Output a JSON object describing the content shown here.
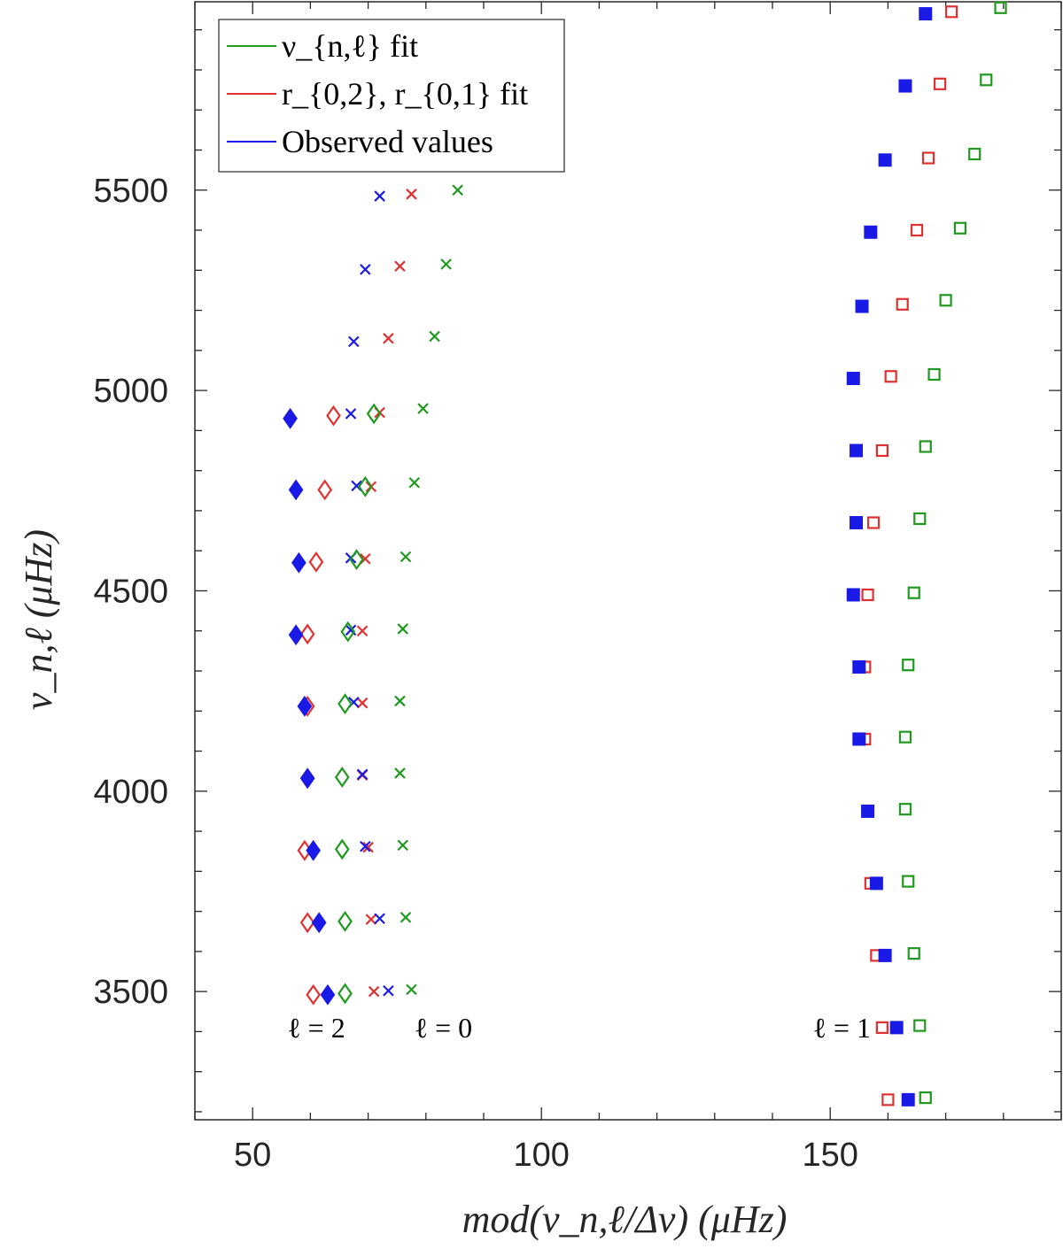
{
  "chart_data": {
    "type": "scatter",
    "title": "",
    "xlabel": "mod(ν_n,ℓ/Δν) (μHz)",
    "ylabel": "ν_n,ℓ (μHz)",
    "xlim": [
      40,
      190
    ],
    "ylim": [
      3180,
      5970
    ],
    "xticks": [
      50,
      100,
      150
    ],
    "yticks": [
      3500,
      4000,
      4500,
      5000,
      5500
    ],
    "legend": {
      "position": "top-left",
      "entries": [
        {
          "label": "ν_{n,ℓ} fit",
          "color": "#1f9a1f"
        },
        {
          "label": "r_{0,2}, r_{0,1} fit",
          "color": "#e03030"
        },
        {
          "label": "Observed values",
          "color": "#1a1ae6"
        }
      ]
    },
    "annotations": [
      {
        "text": "ℓ = 2",
        "x": 56,
        "y": 3385
      },
      {
        "text": "ℓ = 0",
        "x": 78,
        "y": 3385
      },
      {
        "text": "ℓ = 1",
        "x": 147,
        "y": 3385
      }
    ],
    "colors": {
      "green": "#1f9a1f",
      "red": "#e03030",
      "blue": "#1a1ae6"
    },
    "series": [
      {
        "name": "ℓ=0 ν fit",
        "marker": "x",
        "color": "#1f9a1f",
        "points": [
          [
            77.5,
            3505
          ],
          [
            76.5,
            3685
          ],
          [
            76.0,
            3865
          ],
          [
            75.5,
            4045
          ],
          [
            75.5,
            4225
          ],
          [
            76.0,
            4405
          ],
          [
            76.5,
            4585
          ],
          [
            78.0,
            4770
          ],
          [
            79.5,
            4955
          ],
          [
            81.5,
            5135
          ],
          [
            83.5,
            5315
          ],
          [
            85.5,
            5500
          ]
        ]
      },
      {
        "name": "ℓ=0 ratio fit",
        "marker": "x",
        "color": "#e03030",
        "points": [
          [
            71.0,
            3500
          ],
          [
            70.5,
            3680
          ],
          [
            70.0,
            3860
          ],
          [
            69.0,
            4040
          ],
          [
            69.0,
            4220
          ],
          [
            69.0,
            4400
          ],
          [
            69.5,
            4580
          ],
          [
            70.5,
            4760
          ],
          [
            72.0,
            4945
          ],
          [
            73.5,
            5130
          ],
          [
            75.5,
            5310
          ],
          [
            77.5,
            5490
          ]
        ]
      },
      {
        "name": "ℓ=0 observed",
        "marker": "x",
        "color": "#1a1ae6",
        "points": [
          [
            73.5,
            3502
          ],
          [
            72.0,
            3682
          ],
          [
            69.5,
            3862
          ],
          [
            69.0,
            4042
          ],
          [
            67.5,
            4222
          ],
          [
            67.0,
            4402
          ],
          [
            67.0,
            4582
          ],
          [
            68.0,
            4762
          ],
          [
            67.0,
            4942
          ],
          [
            67.5,
            5122
          ],
          [
            69.5,
            5302
          ],
          [
            72.0,
            5485
          ]
        ]
      },
      {
        "name": "ℓ=2 ν fit",
        "marker": "diamond-open",
        "color": "#1f9a1f",
        "points": [
          [
            66.0,
            3495
          ],
          [
            66.0,
            3675
          ],
          [
            65.5,
            3855
          ],
          [
            65.5,
            4035
          ],
          [
            66.0,
            4218
          ],
          [
            66.5,
            4398
          ],
          [
            68.0,
            4578
          ],
          [
            69.5,
            4760
          ],
          [
            71.0,
            4942
          ]
        ]
      },
      {
        "name": "ℓ=2 ratio fit",
        "marker": "diamond-open",
        "color": "#e03030",
        "points": [
          [
            60.5,
            3492
          ],
          [
            59.5,
            3672
          ],
          [
            59.0,
            3852
          ],
          [
            59.5,
            4032
          ],
          [
            59.5,
            4212
          ],
          [
            59.5,
            4392
          ],
          [
            61.0,
            4572
          ],
          [
            62.5,
            4752
          ],
          [
            64.0,
            4937
          ]
        ]
      },
      {
        "name": "ℓ=2 observed",
        "marker": "diamond-filled",
        "color": "#1a1ae6",
        "points": [
          [
            63.0,
            3492
          ],
          [
            61.5,
            3672
          ],
          [
            60.5,
            3852
          ],
          [
            59.5,
            4032
          ],
          [
            59.0,
            4212
          ],
          [
            57.5,
            4390
          ],
          [
            58.0,
            4570
          ],
          [
            57.5,
            4752
          ],
          [
            56.5,
            4930
          ]
        ]
      },
      {
        "name": "ℓ=1 ν fit",
        "marker": "square-open",
        "color": "#1f9a1f",
        "points": [
          [
            166.5,
            3235
          ],
          [
            165.5,
            3415
          ],
          [
            164.5,
            3595
          ],
          [
            163.5,
            3775
          ],
          [
            163.0,
            3955
          ],
          [
            163.0,
            4135
          ],
          [
            163.5,
            4315
          ],
          [
            164.5,
            4495
          ],
          [
            165.5,
            4680
          ],
          [
            166.5,
            4860
          ],
          [
            168.0,
            5040
          ],
          [
            170.0,
            5225
          ],
          [
            172.5,
            5405
          ],
          [
            175.0,
            5590
          ],
          [
            177.0,
            5775
          ],
          [
            179.5,
            5955
          ]
        ]
      },
      {
        "name": "ℓ=1 ratio fit",
        "marker": "square-open",
        "color": "#e03030",
        "points": [
          [
            160.0,
            3230
          ],
          [
            159.0,
            3410
          ],
          [
            158.0,
            3590
          ],
          [
            157.0,
            3770
          ],
          [
            156.5,
            3950
          ],
          [
            156.0,
            4130
          ],
          [
            156.0,
            4310
          ],
          [
            156.5,
            4490
          ],
          [
            157.5,
            4670
          ],
          [
            159.0,
            4850
          ],
          [
            160.5,
            5035
          ],
          [
            162.5,
            5215
          ],
          [
            165.0,
            5400
          ],
          [
            167.0,
            5580
          ],
          [
            169.0,
            5765
          ],
          [
            171.0,
            5945
          ]
        ]
      },
      {
        "name": "ℓ=1 observed",
        "marker": "square-filled",
        "color": "#1a1ae6",
        "points": [
          [
            163.5,
            3230
          ],
          [
            161.5,
            3410
          ],
          [
            159.5,
            3590
          ],
          [
            158.0,
            3770
          ],
          [
            156.5,
            3950
          ],
          [
            155.0,
            4130
          ],
          [
            155.0,
            4310
          ],
          [
            154.0,
            4490
          ],
          [
            154.5,
            4670
          ],
          [
            154.5,
            4850
          ],
          [
            154.0,
            5030
          ],
          [
            155.5,
            5210
          ],
          [
            157.0,
            5395
          ],
          [
            159.5,
            5575
          ],
          [
            163.0,
            5760
          ],
          [
            166.5,
            5940
          ]
        ]
      }
    ]
  }
}
